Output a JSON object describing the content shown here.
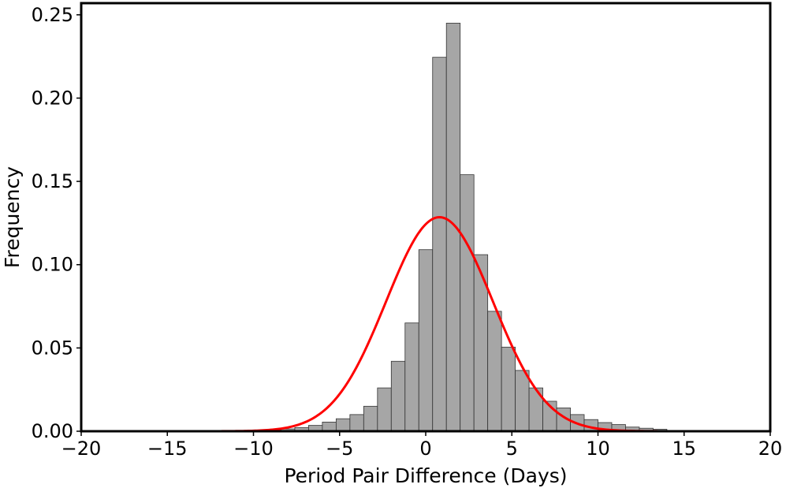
{
  "chart_data": {
    "type": "bar",
    "subtype": "histogram",
    "title": "",
    "xlabel": "Period Pair Difference (Days)",
    "ylabel": "Frequency",
    "xlim": [
      -20,
      20
    ],
    "ylim": [
      0,
      0.257
    ],
    "xticks": [
      -20,
      -15,
      -10,
      -5,
      0,
      5,
      10,
      15,
      20
    ],
    "xtick_labels": [
      "−20",
      "−15",
      "−10",
      "−5",
      "0",
      "5",
      "10",
      "15",
      "20"
    ],
    "yticks": [
      0.0,
      0.05,
      0.1,
      0.15,
      0.2,
      0.25
    ],
    "ytick_labels": [
      "0.00",
      "0.05",
      "0.10",
      "0.15",
      "0.20",
      "0.25"
    ],
    "grid": false,
    "legend": "none",
    "bar_color": "#a6a6a6",
    "bar_edge_color": "#333333",
    "curve_color": "#ff0000",
    "bin_width": 0.8,
    "bins": [
      {
        "x0": -10.8,
        "value": 0.0005
      },
      {
        "x0": -10.0,
        "value": 0.0007
      },
      {
        "x0": -9.2,
        "value": 0.001
      },
      {
        "x0": -8.4,
        "value": 0.0014
      },
      {
        "x0": -7.6,
        "value": 0.0022
      },
      {
        "x0": -6.8,
        "value": 0.0035
      },
      {
        "x0": -6.0,
        "value": 0.0055
      },
      {
        "x0": -5.2,
        "value": 0.0075
      },
      {
        "x0": -4.4,
        "value": 0.01
      },
      {
        "x0": -3.6,
        "value": 0.015
      },
      {
        "x0": -2.8,
        "value": 0.026
      },
      {
        "x0": -2.0,
        "value": 0.042
      },
      {
        "x0": -1.2,
        "value": 0.065
      },
      {
        "x0": -0.4,
        "value": 0.109
      },
      {
        "x0": 0.4,
        "value": 0.2245
      },
      {
        "x0": 1.2,
        "value": 0.245
      },
      {
        "x0": 2.0,
        "value": 0.154
      },
      {
        "x0": 2.8,
        "value": 0.106
      },
      {
        "x0": 3.6,
        "value": 0.072
      },
      {
        "x0": 4.4,
        "value": 0.0505
      },
      {
        "x0": 5.2,
        "value": 0.0365
      },
      {
        "x0": 6.0,
        "value": 0.026
      },
      {
        "x0": 6.8,
        "value": 0.018
      },
      {
        "x0": 7.6,
        "value": 0.014
      },
      {
        "x0": 8.4,
        "value": 0.01
      },
      {
        "x0": 9.2,
        "value": 0.007
      },
      {
        "x0": 10.0,
        "value": 0.0052
      },
      {
        "x0": 10.8,
        "value": 0.004
      },
      {
        "x0": 11.6,
        "value": 0.0025
      },
      {
        "x0": 12.4,
        "value": 0.0018
      },
      {
        "x0": 13.2,
        "value": 0.0012
      }
    ],
    "fit_curve": {
      "type": "gaussian",
      "mean": 0.8,
      "sigma": 3.1,
      "peak": 0.1285
    }
  }
}
